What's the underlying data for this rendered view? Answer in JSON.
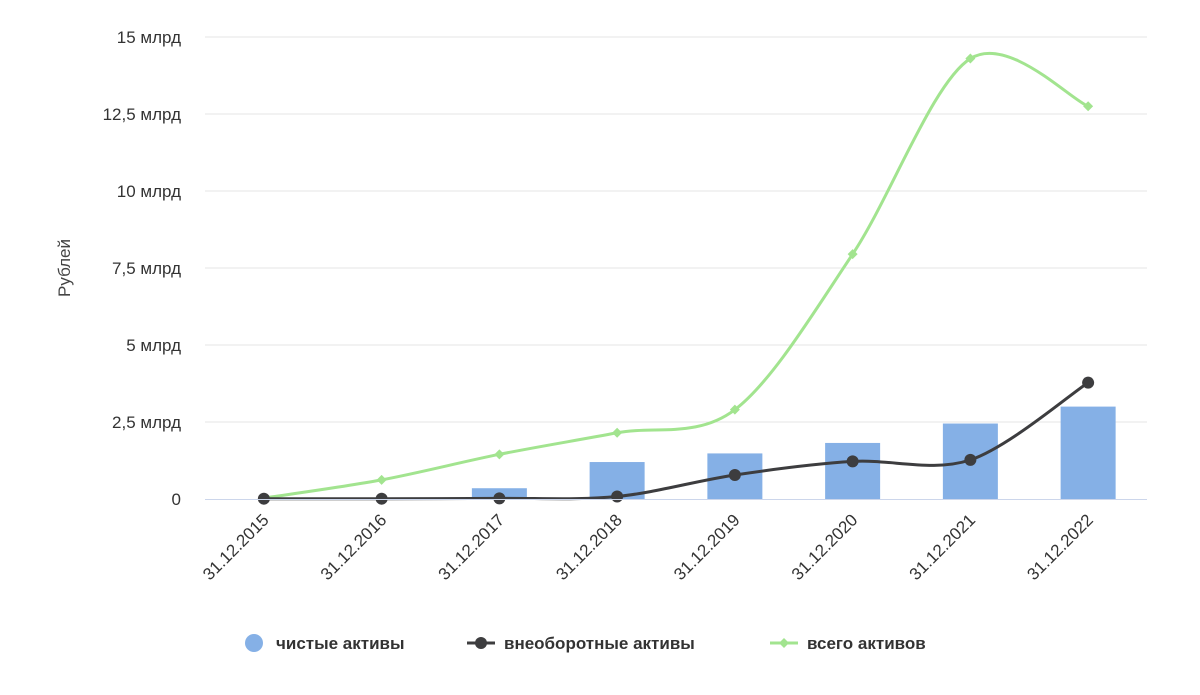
{
  "chart_data": {
    "type": "bar",
    "categories": [
      "31.12.2015",
      "31.12.2016",
      "31.12.2017",
      "31.12.2018",
      "31.12.2019",
      "31.12.2020",
      "31.12.2021",
      "31.12.2022"
    ],
    "ylabel": "Рублей",
    "ylim": [
      0,
      15000000000
    ],
    "yticks": [
      {
        "value": 0,
        "label": "0"
      },
      {
        "value": 2500000000,
        "label": "2,5 млрд"
      },
      {
        "value": 5000000000,
        "label": "5 млрд"
      },
      {
        "value": 7500000000,
        "label": "7,5 млрд"
      },
      {
        "value": 10000000000,
        "label": "10 млрд"
      },
      {
        "value": 12500000000,
        "label": "12,5 млрд"
      },
      {
        "value": 15000000000,
        "label": "15 млрд"
      }
    ],
    "grid": true,
    "legend_position": "bottom",
    "series": [
      {
        "name": "чистые активы",
        "kind": "bar",
        "color": "#85b0e6",
        "values": [
          0,
          0,
          350000000,
          1200000000,
          1480000000,
          1820000000,
          2450000000,
          3000000000
        ]
      },
      {
        "name": "внеоборотные активы",
        "kind": "line",
        "marker": "circle",
        "color": "#3d3d3f",
        "values": [
          10000000,
          10000000,
          20000000,
          80000000,
          780000000,
          1220000000,
          1270000000,
          3780000000
        ]
      },
      {
        "name": "всего активов",
        "kind": "line",
        "marker": "diamond",
        "color": "#a2e48f",
        "values": [
          30000000,
          620000000,
          1450000000,
          2150000000,
          2900000000,
          7950000000,
          14300000000,
          12750000000
        ]
      }
    ]
  }
}
